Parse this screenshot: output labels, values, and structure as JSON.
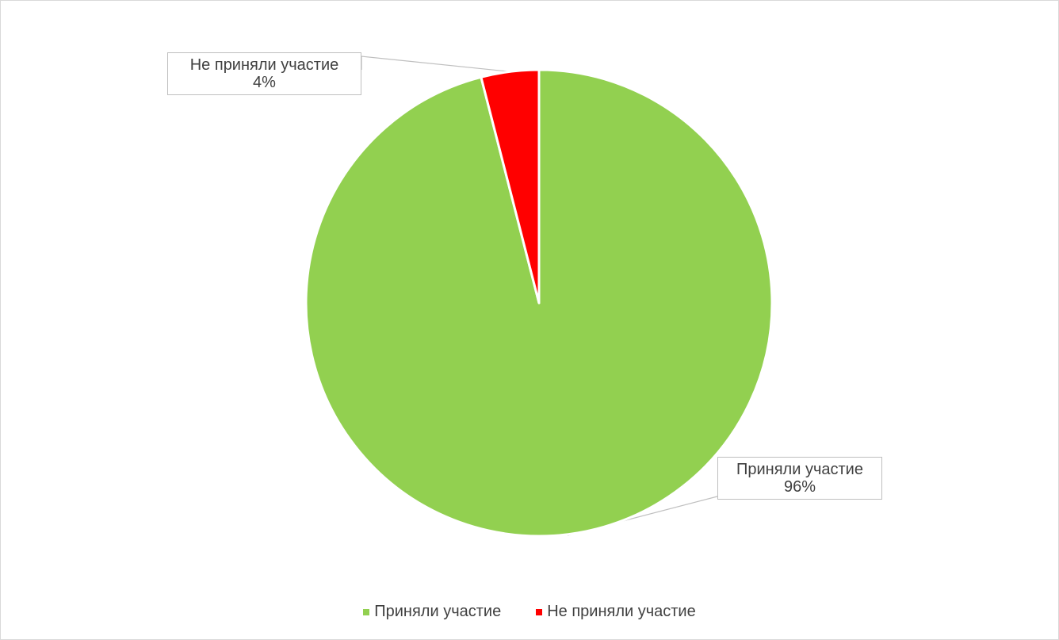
{
  "chart_data": {
    "type": "pie",
    "title": "",
    "slices": [
      {
        "label": "Приняли участие",
        "value": 96,
        "value_label": "96%",
        "color": "#92d050"
      },
      {
        "label": "Не приняли участие",
        "value": 4,
        "value_label": "4%",
        "color": "#ff0000"
      }
    ],
    "legend": {
      "position": "bottom",
      "items": [
        {
          "label": "Приняли участие",
          "color": "#92d050"
        },
        {
          "label": "Не приняли участие",
          "color": "#ff0000"
        }
      ]
    }
  }
}
